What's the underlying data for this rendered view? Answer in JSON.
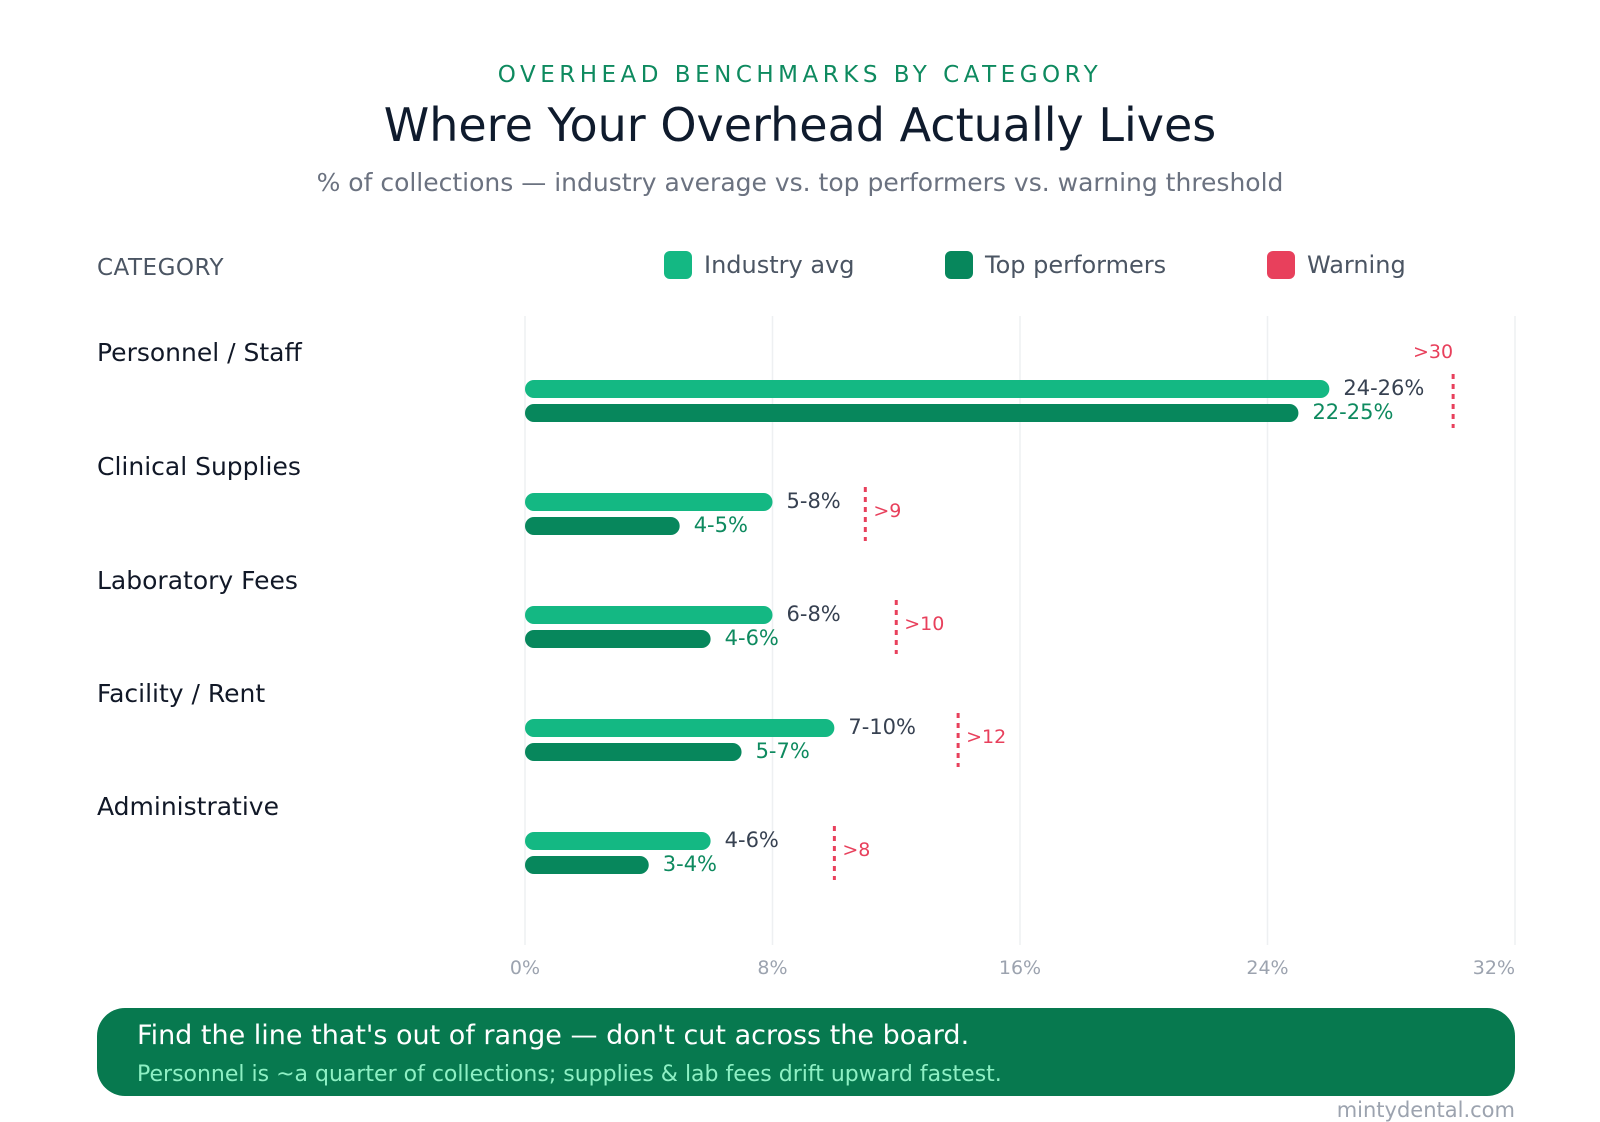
{
  "header": {
    "kicker": "OVERHEAD BENCHMARKS BY CATEGORY",
    "title": "Where Your Overhead Actually Lives",
    "subtitle": "% of collections — industry average vs. top performers vs. warning threshold"
  },
  "colors": {
    "industry": "#14b883",
    "top": "#07875c",
    "warning": "#e8405c",
    "grid": "#eef0f2",
    "axis_tick": "#9ca3af",
    "industry_label": "#374151",
    "top_label": "#0e8a5f"
  },
  "category_header": "CATEGORY",
  "legend": [
    {
      "label": "Industry avg",
      "color": "#14b883"
    },
    {
      "label": "Top performers",
      "color": "#07875c"
    },
    {
      "label": "Warning",
      "color": "#e8405c"
    }
  ],
  "chart_data": {
    "type": "bar",
    "orientation": "horizontal",
    "xlim": [
      0,
      32
    ],
    "ticks": [
      0,
      8,
      16,
      24,
      32
    ],
    "tick_labels": [
      "0%",
      "8%",
      "16%",
      "24%",
      "32%"
    ],
    "grid": true,
    "legend_position": "top",
    "categories": [
      "Personnel / Staff",
      "Clinical Supplies",
      "Laboratory Fees",
      "Facility / Rent",
      "Administrative"
    ],
    "series": [
      {
        "name": "Industry avg",
        "values": [
          26,
          8,
          8,
          10,
          6
        ],
        "labels": [
          "24-26%",
          "5-8%",
          "6-8%",
          "7-10%",
          "4-6%"
        ]
      },
      {
        "name": "Top performers",
        "values": [
          25,
          5,
          6,
          7,
          4
        ],
        "labels": [
          "22-25%",
          "4-5%",
          "4-6%",
          "5-7%",
          "3-4%"
        ]
      },
      {
        "name": "Warning",
        "values": [
          30,
          11,
          12,
          14,
          10
        ],
        "labels": [
          ">30",
          ">9",
          ">10",
          ">12",
          ">8"
        ]
      }
    ]
  },
  "callout": {
    "main": "Find the line that's out of range — don't cut across the board.",
    "sub": "Personnel is ~a quarter of collections; supplies & lab fees drift upward fastest."
  },
  "footer": "mintydental.com"
}
